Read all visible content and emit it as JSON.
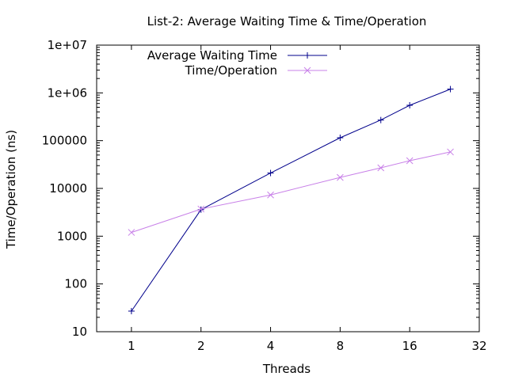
{
  "chart_data": {
    "type": "line",
    "title": "List-2: Average Waiting Time & Time/Operation",
    "xlabel": "Threads",
    "ylabel": "Time/Operation (ns)",
    "x_scale": "log2",
    "y_scale": "log10",
    "xlim": [
      0.7071,
      32
    ],
    "ylim": [
      10,
      10000000
    ],
    "x_ticks": [
      {
        "value": 1,
        "label": "1"
      },
      {
        "value": 2,
        "label": "2"
      },
      {
        "value": 4,
        "label": "4"
      },
      {
        "value": 8,
        "label": "8"
      },
      {
        "value": 16,
        "label": "16"
      },
      {
        "value": 32,
        "label": "32"
      }
    ],
    "y_ticks": [
      {
        "value": 10,
        "label": "10"
      },
      {
        "value": 100,
        "label": "100"
      },
      {
        "value": 1000,
        "label": "1000"
      },
      {
        "value": 10000,
        "label": "10000"
      },
      {
        "value": 100000,
        "label": "100000"
      },
      {
        "value": 1000000,
        "label": "1e+06"
      },
      {
        "value": 10000000,
        "label": "1e+07"
      }
    ],
    "grid": false,
    "legend_position": "top-left",
    "series": [
      {
        "name": "Average Waiting Time",
        "color": "#00008b",
        "marker": "plus",
        "x": [
          1,
          2,
          4,
          8,
          12,
          16,
          24
        ],
        "y": [
          27,
          3600,
          21000,
          115000,
          270000,
          550000,
          1200000
        ]
      },
      {
        "name": "Time/Operation",
        "color": "#c880e8",
        "marker": "cross",
        "x": [
          1,
          2,
          4,
          8,
          12,
          16,
          24
        ],
        "y": [
          1200,
          3700,
          7300,
          17000,
          27000,
          38000,
          58000
        ]
      }
    ]
  }
}
